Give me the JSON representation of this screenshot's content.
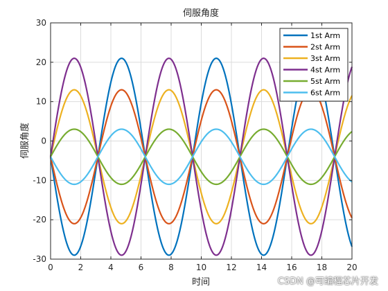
{
  "chart_data": {
    "type": "line",
    "title": "伺服角度",
    "xlabel": "时间",
    "ylabel": "伺服角度",
    "xlim": [
      0,
      20
    ],
    "ylim": [
      -30,
      30
    ],
    "xticks": [
      0,
      2,
      4,
      6,
      8,
      10,
      12,
      14,
      16,
      18,
      20
    ],
    "yticks": [
      -30,
      -20,
      -10,
      0,
      10,
      20,
      30
    ],
    "grid": true,
    "legend_position": "top-right",
    "series": [
      {
        "name": "1st Arm",
        "color": "#0072BD",
        "formula": "-4 - 25*sin(t)",
        "min": -29,
        "max": 21,
        "period": 6.283
      },
      {
        "name": "2st Arm",
        "color": "#D95319",
        "formula": "-4 - 17*sin(t)",
        "min": -21,
        "max": 13,
        "period": 6.283
      },
      {
        "name": "3st Arm",
        "color": "#EDB120",
        "formula": "-4 + 17*sin(t)",
        "min": -21,
        "max": 13,
        "period": 6.283
      },
      {
        "name": "4st Arm",
        "color": "#7E2F8E",
        "formula": "-4 + 25*sin(t)",
        "min": -29,
        "max": 21,
        "period": 6.283
      },
      {
        "name": "5st Arm",
        "color": "#77AC30",
        "formula": "-4 + 7*sin(t)",
        "min": -11,
        "max": 3,
        "period": 6.283
      },
      {
        "name": "6st Arm",
        "color": "#4DBEEE",
        "formula": "-4 - 7*sin(t)",
        "min": -11,
        "max": 3,
        "period": 6.283
      }
    ]
  },
  "watermark": "CSDN @可编程芯片开发"
}
